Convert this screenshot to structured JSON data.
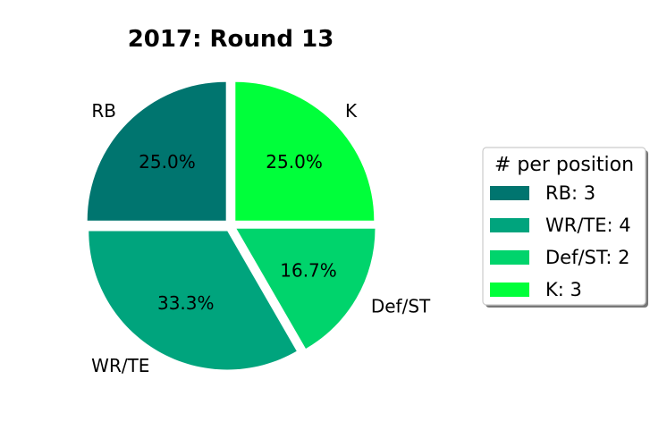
{
  "chart_data": {
    "type": "pie",
    "title": "2017: Round 13",
    "categories": [
      "RB",
      "WR/TE",
      "Def/ST",
      "K"
    ],
    "values": [
      3,
      4,
      2,
      3
    ],
    "percent_labels": [
      "25.0%",
      "33.3%",
      "16.7%",
      "25.0%"
    ],
    "colors": [
      "#00756f",
      "#00a47d",
      "#00d46c",
      "#00ff3a"
    ],
    "legend": {
      "title": "# per position",
      "placement": "right",
      "entries": [
        "RB: 3",
        "WR/TE: 4",
        "Def/ST: 2",
        "K: 3"
      ]
    }
  }
}
